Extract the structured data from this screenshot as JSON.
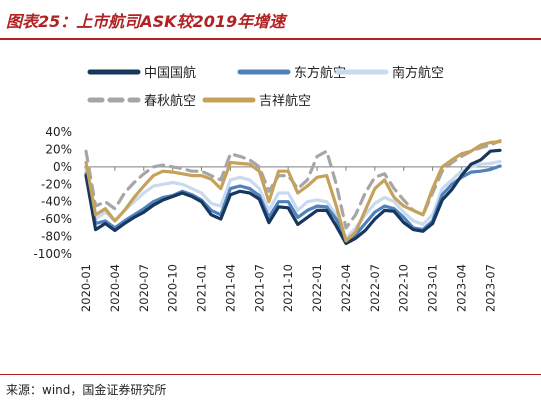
{
  "header": {
    "title": "图表25：上市航司ASK较2019年增速"
  },
  "footer": {
    "source": "来源：wind，国金证券研究所"
  },
  "chart_data": {
    "type": "line",
    "title": "图表25：上市航司ASK较2019年增速",
    "ylim": [
      -100,
      40
    ],
    "yticks": [
      "40%",
      "20%",
      "0%",
      "-20%",
      "-40%",
      "-60%",
      "-80%",
      "-100%"
    ],
    "ytick_values": [
      40,
      20,
      0,
      -20,
      -40,
      -60,
      -80,
      -100
    ],
    "x": [
      "2020-01",
      "2020-02",
      "2020-03",
      "2020-04",
      "2020-05",
      "2020-06",
      "2020-07",
      "2020-08",
      "2020-09",
      "2020-10",
      "2020-11",
      "2020-12",
      "2021-01",
      "2021-02",
      "2021-03",
      "2021-04",
      "2021-05",
      "2021-06",
      "2021-07",
      "2021-08",
      "2021-09",
      "2021-10",
      "2021-11",
      "2021-12",
      "2022-01",
      "2022-02",
      "2022-03",
      "2022-04",
      "2022-05",
      "2022-06",
      "2022-07",
      "2022-08",
      "2022-09",
      "2022-10",
      "2022-11",
      "2022-12",
      "2023-01",
      "2023-02",
      "2023-03",
      "2023-04",
      "2023-05",
      "2023-06",
      "2023-07",
      "2023-08"
    ],
    "xtick_labels": [
      "2020-01",
      "2020-04",
      "2020-07",
      "2020-10",
      "2021-01",
      "2021-04",
      "2021-07",
      "2021-10",
      "2022-01",
      "2022-04",
      "2022-07",
      "2022-10",
      "2023-01",
      "2023-04",
      "2023-07"
    ],
    "legend_position": "top",
    "grid": false,
    "series": [
      {
        "name": "中国国航",
        "color": "#17375e",
        "style": "solid",
        "values": [
          -10,
          -72,
          -65,
          -73,
          -65,
          -58,
          -52,
          -44,
          -38,
          -34,
          -30,
          -34,
          -40,
          -55,
          -60,
          -32,
          -28,
          -30,
          -37,
          -64,
          -46,
          -47,
          -66,
          -58,
          -50,
          -50,
          -68,
          -88,
          -82,
          -73,
          -60,
          -50,
          -51,
          -64,
          -72,
          -74,
          -65,
          -38,
          -26,
          -10,
          3,
          8,
          18,
          19
        ]
      },
      {
        "name": "东方航空",
        "color": "#4f81bd",
        "style": "solid",
        "values": [
          -8,
          -65,
          -62,
          -70,
          -62,
          -55,
          -48,
          -40,
          -35,
          -33,
          -28,
          -32,
          -38,
          -50,
          -55,
          -25,
          -22,
          -25,
          -33,
          -58,
          -40,
          -40,
          -58,
          -50,
          -45,
          -46,
          -60,
          -85,
          -78,
          -65,
          -52,
          -45,
          -48,
          -58,
          -70,
          -72,
          -62,
          -32,
          -20,
          -12,
          -6,
          -5,
          -3,
          1
        ]
      },
      {
        "name": "南方航空",
        "color": "#c9daf0",
        "style": "solid",
        "values": [
          -2,
          -60,
          -52,
          -62,
          -50,
          -40,
          -30,
          -22,
          -20,
          -18,
          -20,
          -25,
          -30,
          -42,
          -45,
          -15,
          -12,
          -15,
          -25,
          -50,
          -30,
          -30,
          -50,
          -40,
          -38,
          -40,
          -55,
          -82,
          -70,
          -55,
          -42,
          -35,
          -40,
          -52,
          -62,
          -66,
          -55,
          -25,
          -15,
          -5,
          0,
          3,
          4,
          6
        ]
      },
      {
        "name": "春秋航空",
        "color": "#a6a6a6",
        "style": "dashed",
        "values": [
          18,
          -45,
          -40,
          -48,
          -30,
          -18,
          -8,
          0,
          2,
          0,
          -2,
          -5,
          -5,
          -10,
          -15,
          15,
          12,
          8,
          0,
          -28,
          -10,
          -10,
          -25,
          -15,
          12,
          18,
          -20,
          -70,
          -55,
          -30,
          -12,
          -8,
          -25,
          -38,
          -50,
          -55,
          -30,
          -5,
          5,
          12,
          18,
          22,
          25,
          30
        ]
      },
      {
        "name": "吉祥航空",
        "color": "#c5a15a",
        "style": "solid",
        "values": [
          5,
          -55,
          -48,
          -62,
          -50,
          -35,
          -22,
          -10,
          -5,
          -6,
          -8,
          -10,
          -10,
          -14,
          -25,
          5,
          4,
          3,
          -5,
          -40,
          -5,
          -5,
          -30,
          -22,
          -12,
          -10,
          -45,
          -85,
          -75,
          -50,
          -25,
          -15,
          -35,
          -45,
          -50,
          -55,
          -25,
          0,
          8,
          15,
          18,
          25,
          28,
          29
        ]
      }
    ]
  }
}
